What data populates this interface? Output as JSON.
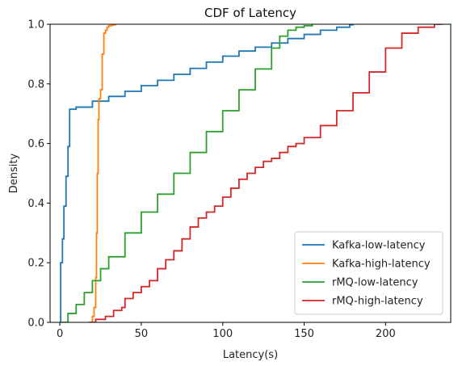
{
  "chart_data": {
    "type": "line",
    "step": true,
    "title": "CDF of Latency",
    "xlabel": "Latency(s)",
    "ylabel": "Density",
    "xlim": [
      -6,
      240
    ],
    "ylim": [
      0,
      1.0
    ],
    "xticks": [
      0,
      50,
      100,
      150,
      200
    ],
    "yticks": [
      0.0,
      0.2,
      0.4,
      0.6,
      0.8,
      1.0
    ],
    "xtick_labels": [
      "0",
      "50",
      "100",
      "150",
      "200"
    ],
    "ytick_labels": [
      "0.0",
      "0.2",
      "0.4",
      "0.6",
      "0.8",
      "1.0"
    ],
    "grid": false,
    "legend_position": "lower-right",
    "series": [
      {
        "name": "Kafka-low-latency",
        "color": "#1f77b4",
        "x": [
          0,
          0.5,
          1,
          1.6,
          2,
          2.5,
          3,
          3.8,
          4.5,
          5,
          5.5,
          6,
          10,
          20,
          30,
          40,
          50,
          60,
          70,
          80,
          90,
          100,
          110,
          120,
          130,
          140,
          150,
          160,
          170,
          178,
          180
        ],
        "y": [
          0.0,
          0.2,
          0.2,
          0.28,
          0.28,
          0.39,
          0.39,
          0.49,
          0.49,
          0.59,
          0.59,
          0.715,
          0.722,
          0.742,
          0.758,
          0.775,
          0.794,
          0.812,
          0.832,
          0.852,
          0.873,
          0.893,
          0.91,
          0.923,
          0.937,
          0.952,
          0.966,
          0.98,
          0.99,
          0.998,
          1.0
        ]
      },
      {
        "name": "Kafka-high-latency",
        "color": "#ff7f0e",
        "x": [
          18,
          20,
          21,
          22,
          22.5,
          23,
          23.5,
          24,
          25,
          26,
          27,
          28,
          29,
          30,
          32,
          34
        ],
        "y": [
          0.0,
          0.02,
          0.05,
          0.15,
          0.3,
          0.5,
          0.68,
          0.75,
          0.78,
          0.9,
          0.97,
          0.98,
          0.99,
          0.995,
          0.998,
          1.0
        ]
      },
      {
        "name": "rMQ-low-latency",
        "color": "#2ca02c",
        "x": [
          0,
          5,
          10,
          15,
          20,
          25,
          30,
          40,
          50,
          60,
          70,
          80,
          90,
          100,
          110,
          120,
          130,
          135,
          140,
          145,
          150,
          155
        ],
        "y": [
          0.0,
          0.03,
          0.06,
          0.1,
          0.14,
          0.18,
          0.22,
          0.3,
          0.37,
          0.43,
          0.5,
          0.57,
          0.64,
          0.71,
          0.78,
          0.85,
          0.92,
          0.96,
          0.98,
          0.99,
          0.995,
          1.0
        ]
      },
      {
        "name": "rMQ-high-latency",
        "color": "#d62728",
        "x": [
          18,
          22,
          28,
          33,
          38,
          40,
          45,
          50,
          55,
          60,
          65,
          70,
          75,
          80,
          85,
          90,
          95,
          100,
          105,
          110,
          115,
          120,
          125,
          130,
          135,
          140,
          145,
          150,
          160,
          170,
          180,
          190,
          200,
          210,
          220,
          230,
          235
        ],
        "y": [
          0.0,
          0.01,
          0.02,
          0.04,
          0.05,
          0.08,
          0.1,
          0.12,
          0.14,
          0.18,
          0.21,
          0.24,
          0.28,
          0.32,
          0.35,
          0.37,
          0.39,
          0.42,
          0.45,
          0.48,
          0.5,
          0.52,
          0.54,
          0.55,
          0.57,
          0.59,
          0.6,
          0.62,
          0.66,
          0.71,
          0.77,
          0.84,
          0.92,
          0.97,
          0.99,
          1.0,
          1.0
        ]
      }
    ]
  }
}
